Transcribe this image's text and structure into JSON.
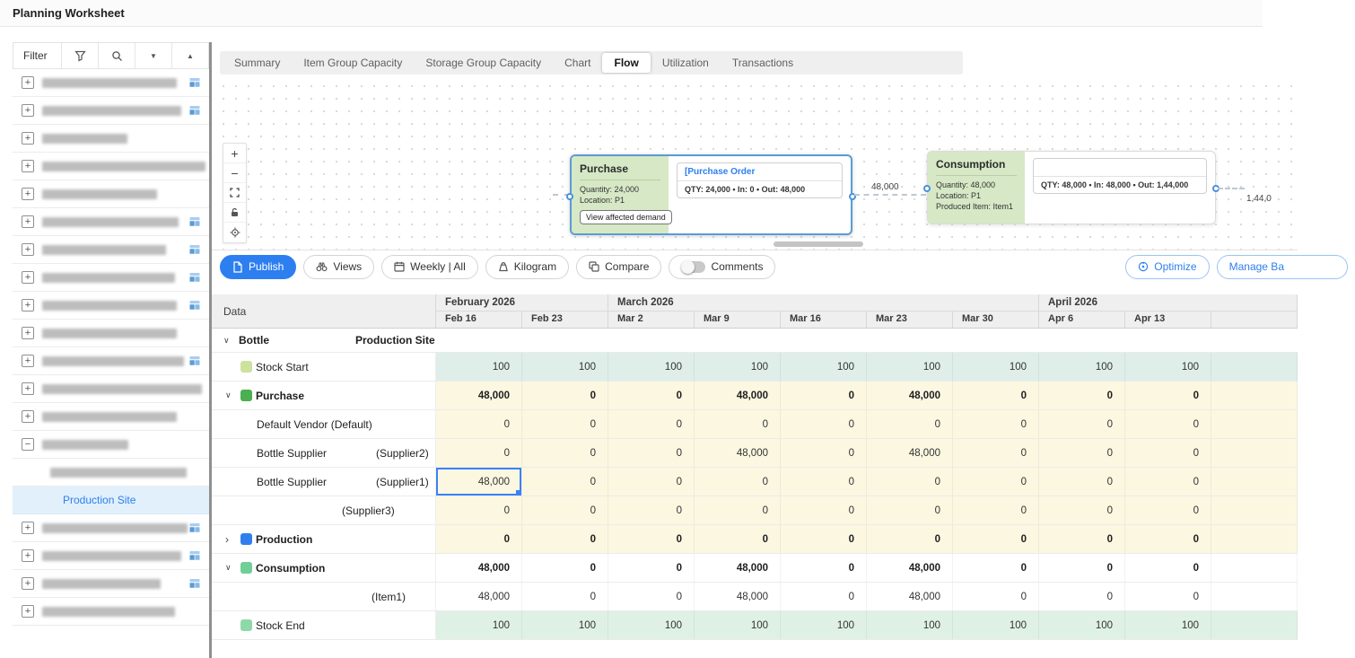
{
  "header": {
    "title": "Planning Worksheet"
  },
  "sidebar": {
    "filter_label": "Filter",
    "icons": [
      "funnel-icon",
      "search-icon",
      "caret-down-icon",
      "caret-up-icon"
    ],
    "items": [
      {
        "expand": "plus",
        "badge": true,
        "redacted": true,
        "w": 150
      },
      {
        "expand": "plus",
        "badge": true,
        "redacted": true,
        "w": 155
      },
      {
        "expand": "plus",
        "badge": false,
        "redacted": true,
        "w": 95
      },
      {
        "expand": "plus",
        "badge": false,
        "redacted": true,
        "w": 182
      },
      {
        "expand": "plus",
        "badge": false,
        "redacted": true,
        "w": 128
      },
      {
        "expand": "plus",
        "badge": true,
        "redacted": true,
        "w": 152
      },
      {
        "expand": "plus",
        "badge": true,
        "redacted": true,
        "w": 138
      },
      {
        "expand": "plus",
        "badge": true,
        "redacted": true,
        "w": 148
      },
      {
        "expand": "plus",
        "badge": true,
        "redacted": true,
        "w": 150
      },
      {
        "expand": "plus",
        "badge": false,
        "redacted": true,
        "w": 150
      },
      {
        "expand": "plus",
        "badge": true,
        "redacted": true,
        "w": 158
      },
      {
        "expand": "plus",
        "badge": false,
        "redacted": true,
        "w": 178
      },
      {
        "expand": "plus",
        "badge": false,
        "redacted": true,
        "w": 150
      },
      {
        "expand": "minus",
        "badge": false,
        "redacted": true,
        "w": 96
      },
      {
        "child": true,
        "badge": false,
        "redacted": true,
        "w": 152
      },
      {
        "selected": true,
        "label": "Production Site"
      },
      {
        "expand": "plus",
        "badge": true,
        "redacted": true,
        "w": 162
      },
      {
        "expand": "plus",
        "badge": true,
        "redacted": true,
        "w": 155
      },
      {
        "expand": "plus",
        "badge": true,
        "redacted": true,
        "w": 132
      },
      {
        "expand": "plus",
        "badge": false,
        "redacted": true,
        "w": 148
      }
    ]
  },
  "tabs": [
    {
      "label": "Summary",
      "active": false
    },
    {
      "label": "Item Group Capacity",
      "active": false
    },
    {
      "label": "Storage Group Capacity",
      "active": false
    },
    {
      "label": "Chart",
      "active": false
    },
    {
      "label": "Flow",
      "active": true
    },
    {
      "label": "Utilization",
      "active": false
    },
    {
      "label": "Transactions",
      "active": false
    }
  ],
  "flow": {
    "controls": [
      "zoom-in",
      "zoom-out",
      "fit-view",
      "lock",
      "center-view"
    ],
    "purchase": {
      "title": "Purchase",
      "quantity": "Quantity: 24,000",
      "location": "Location: P1",
      "button": "View affected demand",
      "order_link": "[Purchase Order",
      "stats": "QTY: 24,000  •  In: 0  •  Out: 48,000"
    },
    "consumption": {
      "title": "Consumption",
      "quantity": "Quantity: 48,000",
      "location": "Location: P1",
      "produced": "Produced Item: Item1",
      "order_link": "",
      "stats": "QTY: 48,000  •  In: 48,000  •  Out: 1,44,000"
    },
    "edge_mid_label": "48,000",
    "edge_right_label": "1,44,0"
  },
  "toolbar": {
    "publish": "Publish",
    "views": "Views",
    "weekly": "Weekly | All",
    "kilogram": "Kilogram",
    "compare": "Compare",
    "comments": "Comments",
    "optimize": "Optimize",
    "manage": "Manage Ba"
  },
  "table": {
    "data_header": "Data",
    "months": [
      {
        "label": "February 2026",
        "span": 2
      },
      {
        "label": "March 2026",
        "span": 5
      },
      {
        "label": "April 2026",
        "span": 3
      }
    ],
    "weeks": [
      "Feb 16",
      "Feb 23",
      "Mar 2",
      "Mar 9",
      "Mar 16",
      "Mar 23",
      "Mar 30",
      "Apr 6",
      "Apr 13",
      ""
    ],
    "rows": [
      {
        "type": "group",
        "label": "Bottle",
        "sublabel": "Production Site"
      },
      {
        "label": "Stock Start",
        "icon": "stock-start-legend",
        "iconColor": "#cde29c",
        "bg": "mint-start",
        "bold": false,
        "values": [
          "100",
          "100",
          "100",
          "100",
          "100",
          "100",
          "100",
          "100",
          "100",
          ""
        ]
      },
      {
        "label": "Purchase",
        "chevron": "down",
        "icon": "purchase-legend",
        "iconColor": "#4caf50",
        "bg": "cream",
        "bold": true,
        "values": [
          "48,000",
          "0",
          "0",
          "48,000",
          "0",
          "48,000",
          "0",
          "0",
          "0",
          ""
        ]
      },
      {
        "label": "Default Vendor (Default)",
        "indent": 1,
        "bg": "cream",
        "bold": false,
        "values": [
          "0",
          "0",
          "0",
          "0",
          "0",
          "0",
          "0",
          "0",
          "0",
          ""
        ]
      },
      {
        "label": "Bottle Supplier",
        "sub": "(Supplier2)",
        "subLeft": 183,
        "indent": 1,
        "bg": "cream",
        "bold": false,
        "values": [
          "0",
          "0",
          "0",
          "48,000",
          "0",
          "48,000",
          "0",
          "0",
          "0",
          ""
        ]
      },
      {
        "label": "Bottle Supplier",
        "sub": "(Supplier1)",
        "subLeft": 183,
        "indent": 1,
        "bg": "cream",
        "bold": false,
        "selected": 0,
        "values": [
          "48,000",
          "0",
          "0",
          "0",
          "0",
          "0",
          "0",
          "0",
          "0",
          ""
        ]
      },
      {
        "label": "",
        "sub": "(Supplier3)",
        "subLeft": 145,
        "indent": 1,
        "bg": "cream",
        "bold": false,
        "values": [
          "0",
          "0",
          "0",
          "0",
          "0",
          "0",
          "0",
          "0",
          "0",
          ""
        ]
      },
      {
        "label": "Production",
        "chevron": "right",
        "icon": "production-legend",
        "iconColor": "#2f80ed",
        "bg": "cream",
        "bold": true,
        "values": [
          "0",
          "0",
          "0",
          "0",
          "0",
          "0",
          "0",
          "0",
          "0",
          ""
        ]
      },
      {
        "label": "Consumption",
        "chevron": "down",
        "icon": "consumption-legend",
        "iconColor": "#6fcf97",
        "bg": "white",
        "bold": true,
        "values": [
          "48,000",
          "0",
          "0",
          "48,000",
          "0",
          "48,000",
          "0",
          "0",
          "0",
          ""
        ]
      },
      {
        "label": "",
        "sub": "(Item1)",
        "subLeft": 178,
        "indent": 1,
        "bg": "white",
        "bold": false,
        "values": [
          "48,000",
          "0",
          "0",
          "48,000",
          "0",
          "48,000",
          "0",
          "0",
          "0",
          ""
        ]
      },
      {
        "label": "Stock End",
        "icon": "stock-end-legend",
        "iconColor": "#8fd9a8",
        "bg": "mint-end",
        "bold": false,
        "values": [
          "100",
          "100",
          "100",
          "100",
          "100",
          "100",
          "100",
          "100",
          "100",
          ""
        ]
      }
    ]
  },
  "colors": {
    "accent_blue": "#2d7ff0",
    "selected_cell_border": "#3b82f6",
    "cream_cell": "#fbf7e1",
    "stock_start_cell": "#dfeee9",
    "stock_end_cell": "#dff1e4",
    "node_green_panel": "#d6e8c5"
  }
}
